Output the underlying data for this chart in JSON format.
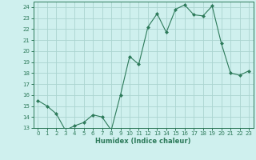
{
  "title": "",
  "xlabel": "Humidex (Indice chaleur)",
  "ylabel": "",
  "x": [
    0,
    1,
    2,
    3,
    4,
    5,
    6,
    7,
    8,
    9,
    10,
    11,
    12,
    13,
    14,
    15,
    16,
    17,
    18,
    19,
    20,
    21,
    22,
    23
  ],
  "y": [
    15.5,
    15.0,
    14.3,
    12.8,
    13.2,
    13.5,
    14.2,
    14.0,
    12.8,
    16.0,
    19.5,
    18.8,
    22.2,
    23.4,
    21.7,
    23.8,
    24.2,
    23.3,
    23.2,
    24.1,
    20.7,
    18.0,
    17.8,
    18.2
  ],
  "line_color": "#2d7a5a",
  "marker": "D",
  "marker_size": 2.0,
  "background_color": "#cff0ee",
  "grid_color": "#aad4d0",
  "xlim": [
    -0.5,
    23.5
  ],
  "ylim": [
    13,
    24.5
  ],
  "yticks": [
    13,
    14,
    15,
    16,
    17,
    18,
    19,
    20,
    21,
    22,
    23,
    24
  ],
  "xticks": [
    0,
    1,
    2,
    3,
    4,
    5,
    6,
    7,
    8,
    9,
    10,
    11,
    12,
    13,
    14,
    15,
    16,
    17,
    18,
    19,
    20,
    21,
    22,
    23
  ],
  "tick_fontsize": 5.0,
  "xlabel_fontsize": 6.0,
  "tick_color": "#2d7a5a",
  "spine_color": "#2d7a5a"
}
